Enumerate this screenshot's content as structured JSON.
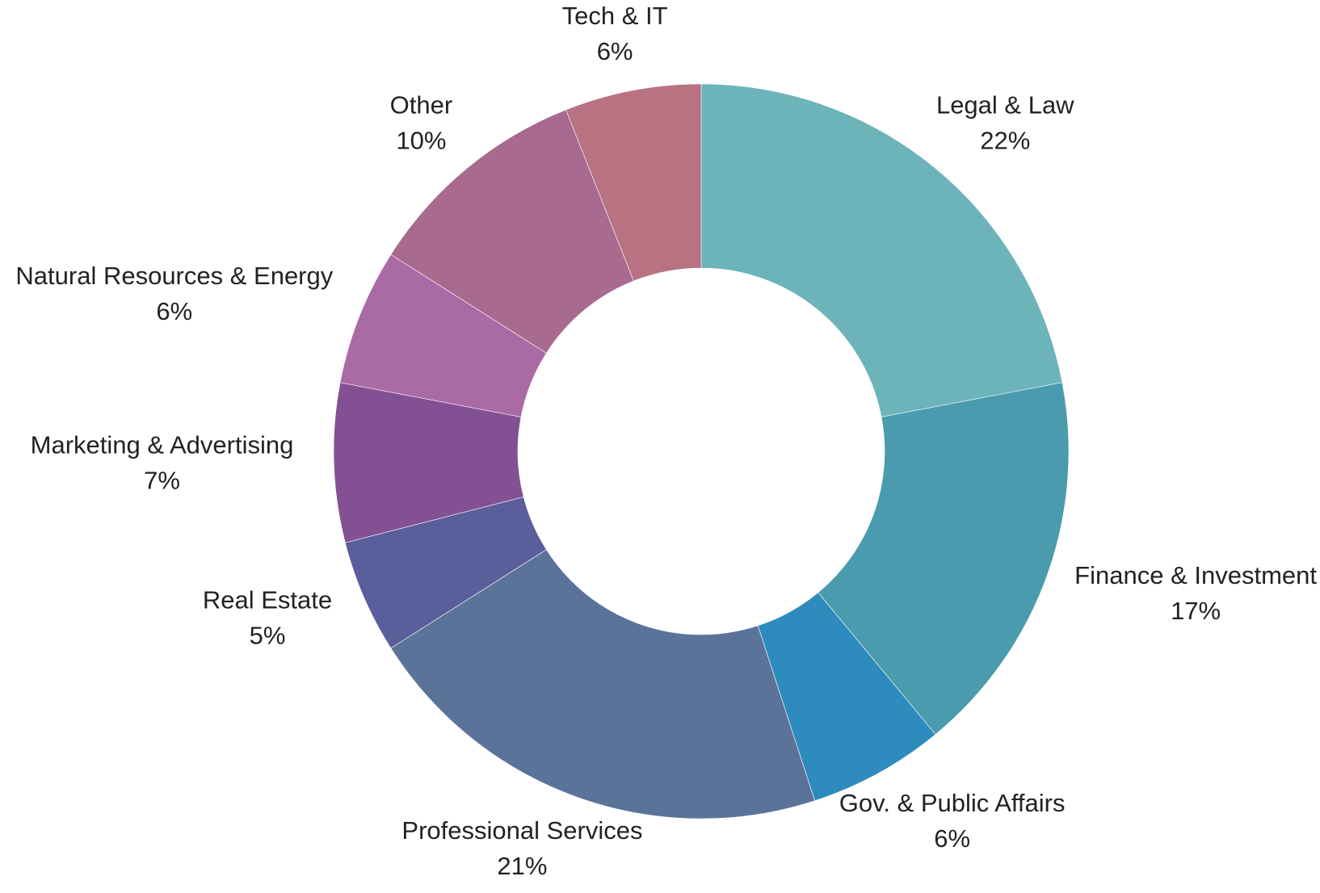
{
  "chart_data": {
    "type": "donut",
    "categories": [
      "Legal & Law",
      "Finance & Investment",
      "Gov. & Public Affairs",
      "Professional Services",
      "Real Estate",
      "Marketing & Advertising",
      "Natural Resources & Energy",
      "Other",
      "Tech & IT"
    ],
    "values": [
      22,
      17,
      6,
      21,
      5,
      7,
      6,
      10,
      6
    ],
    "value_labels": [
      "22%",
      "17%",
      "6%",
      "21%",
      "5%",
      "7%",
      "6%",
      "10%",
      "6%"
    ],
    "colors": [
      "#6db3ba",
      "#4a9bae",
      "#2e8bbd",
      "#5c7399",
      "#5a5e9a",
      "#845094",
      "#aa6aa6",
      "#a86a8e",
      "#b87282"
    ]
  }
}
